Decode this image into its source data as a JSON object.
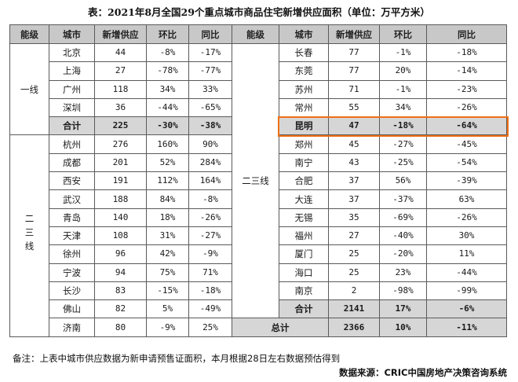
{
  "title": "表：2021年8月全国29个重点城市商品住宅新增供应面积（单位：万平方米）",
  "headers": [
    "能级",
    "城市",
    "新增供应",
    "环比",
    "同比"
  ],
  "tier1": {
    "label": "一线",
    "rows": [
      [
        "北京",
        "44",
        "-8%",
        "-17%"
      ],
      [
        "上海",
        "27",
        "-78%",
        "-77%"
      ],
      [
        "广州",
        "118",
        "34%",
        "33%"
      ],
      [
        "深圳",
        "36",
        "-44%",
        "-65%"
      ]
    ],
    "sum": [
      "合计",
      "225",
      "-30%",
      "-38%"
    ]
  },
  "tier23_left": {
    "label": "二三线",
    "rows": [
      [
        "杭州",
        "276",
        "160%",
        "90%"
      ],
      [
        "成都",
        "201",
        "52%",
        "284%"
      ],
      [
        "西安",
        "191",
        "112%",
        "164%"
      ],
      [
        "武汉",
        "188",
        "84%",
        "-8%"
      ],
      [
        "青岛",
        "140",
        "18%",
        "-26%"
      ],
      [
        "天津",
        "108",
        "31%",
        "-27%"
      ],
      [
        "徐州",
        "96",
        "42%",
        "-9%"
      ],
      [
        "宁波",
        "94",
        "75%",
        "71%"
      ],
      [
        "长沙",
        "83",
        "-15%",
        "-18%"
      ],
      [
        "佛山",
        "82",
        "5%",
        "-49%"
      ],
      [
        "济南",
        "80",
        "-9%",
        "25%"
      ]
    ]
  },
  "tier23_right": {
    "label": "二三线",
    "rows": [
      [
        "长春",
        "77",
        "-1%",
        "-18%"
      ],
      [
        "东莞",
        "77",
        "20%",
        "-14%"
      ],
      [
        "苏州",
        "71",
        "-1%",
        "-23%"
      ],
      [
        "常州",
        "55",
        "34%",
        "-26%"
      ],
      [
        "昆明",
        "47",
        "-18%",
        "-64%"
      ],
      [
        "郑州",
        "45",
        "-27%",
        "-45%"
      ],
      [
        "南宁",
        "43",
        "-25%",
        "-54%"
      ],
      [
        "合肥",
        "37",
        "56%",
        "-39%"
      ],
      [
        "大连",
        "37",
        "-37%",
        "63%"
      ],
      [
        "无锡",
        "35",
        "-69%",
        "-26%"
      ],
      [
        "福州",
        "27",
        "-40%",
        "30%"
      ],
      [
        "厦门",
        "25",
        "-20%",
        "11%"
      ],
      [
        "海口",
        "25",
        "23%",
        "-44%"
      ],
      [
        "南京",
        "2",
        "-98%",
        "-99%"
      ]
    ],
    "sum": [
      "合计",
      "2141",
      "17%",
      "-6%"
    ]
  },
  "total": [
    "总计",
    "2366",
    "10%",
    "-11%"
  ],
  "highlight_city": "昆明",
  "highlight_color": "#f07014",
  "note": "备注：上表中城市供应数据为新申请预售证面积，本月根据28日左右数据预估得到",
  "source": "数据来源：CRIC中国房地产决策咨询系统"
}
